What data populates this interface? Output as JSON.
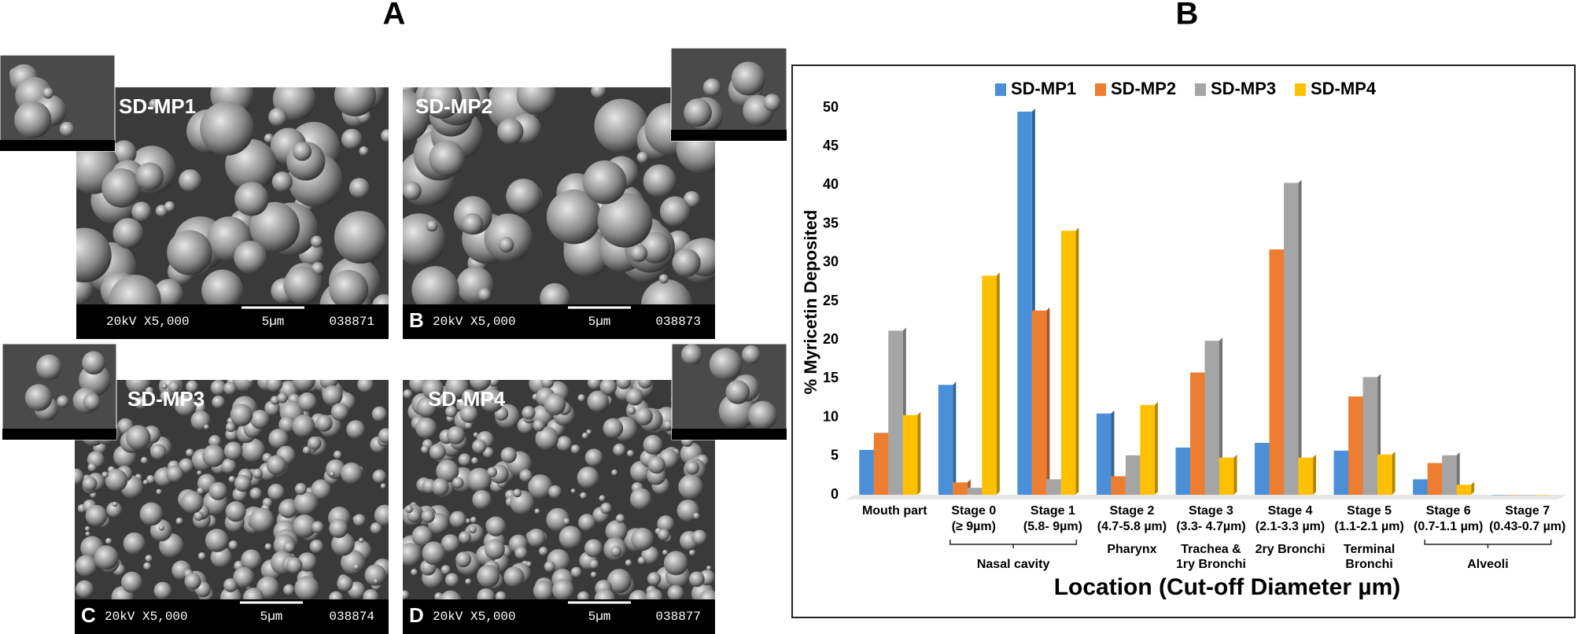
{
  "panel_labels": {
    "a": "A",
    "b": "B"
  },
  "sem_images": [
    {
      "label": "SD-MP1",
      "info": "20kV X5,000",
      "scale": "5µm",
      "code": "038871"
    },
    {
      "label": "SD-MP2",
      "letter": "B",
      "info": "20kV X5,000",
      "scale": "5µm",
      "code": "038873"
    },
    {
      "label": "SD-MP3",
      "letter": "C",
      "info": "20kV X5,000",
      "scale": "5µm",
      "code": "038874"
    },
    {
      "label": "SD-MP4",
      "letter": "D",
      "info": "20kV X5,000",
      "scale": "5µm",
      "code": "038877"
    }
  ],
  "chart_data": {
    "type": "bar",
    "y_label": "% Myricetin Deposited",
    "x_label": "Location (Cut-off Diameter µm)",
    "categories": [
      "Mouth part",
      "Stage 0",
      "Stage 1",
      "Stage 2",
      "Stage 3",
      "Stage 4",
      "Stage 5",
      "Stage 6",
      "Stage 7"
    ],
    "cutoffs": [
      null,
      "(≥ 9µm)",
      "(5.8- 9µm)",
      "(4.7-5.8 µm)",
      "(3.3- 4.7µm)",
      "(2.1-3.3 µm)",
      "(1.1-2.1 µm)",
      "(0.7-1.1 µm)",
      "(0.43-0.7 µm)"
    ],
    "regions": [
      {
        "lines": [
          "Nasal cavity"
        ],
        "span": [
          1,
          2
        ]
      },
      {
        "lines": [
          "Pharynx"
        ],
        "span": [
          3,
          3
        ]
      },
      {
        "lines": [
          "Trachea &",
          "1ry  Bronchi"
        ],
        "span": [
          4,
          4
        ]
      },
      {
        "lines": [
          "2ry Bronchi"
        ],
        "span": [
          5,
          5
        ]
      },
      {
        "lines": [
          "Terminal",
          "Bronchi"
        ],
        "span": [
          6,
          6
        ]
      },
      {
        "lines": [
          "Alveoli"
        ],
        "span": [
          7,
          8
        ]
      }
    ],
    "series": [
      {
        "name": "SD-MP1",
        "color": "#4a8fd8",
        "values": [
          5.8,
          14.2,
          49.5,
          10.5,
          6.1,
          6.7,
          5.7,
          2.0,
          0
        ]
      },
      {
        "name": "SD-MP2",
        "color": "#ed7d31",
        "values": [
          8.0,
          1.6,
          23.8,
          2.4,
          15.8,
          31.7,
          12.7,
          4.1,
          0
        ]
      },
      {
        "name": "SD-MP3",
        "color": "#a5a5a5",
        "values": [
          21.2,
          0.9,
          2.0,
          5.1,
          19.9,
          40.3,
          15.2,
          5.1,
          0
        ]
      },
      {
        "name": "SD-MP4",
        "color": "#ffc000",
        "values": [
          10.3,
          28.3,
          34.1,
          11.6,
          4.8,
          4.8,
          5.2,
          1.3,
          0
        ]
      }
    ],
    "ylim": [
      0,
      50
    ],
    "yticks": [
      0,
      5,
      10,
      15,
      20,
      25,
      30,
      35,
      40,
      45,
      50
    ],
    "grid": false,
    "legend": "top"
  }
}
